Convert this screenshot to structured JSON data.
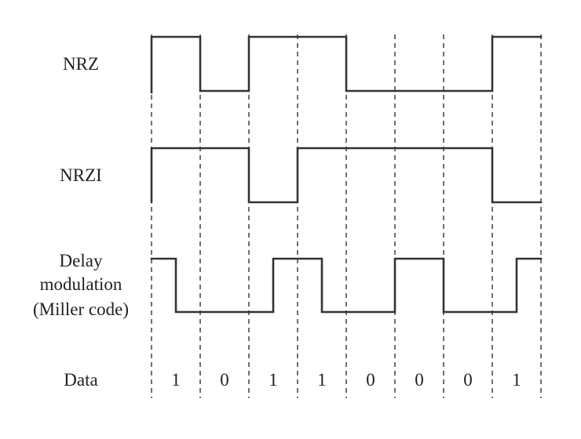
{
  "signals": [
    {
      "label_lines": [
        "NRZ"
      ],
      "levels": [
        1,
        0,
        1,
        1,
        0,
        0,
        0,
        1
      ]
    },
    {
      "label_lines": [
        "NRZI"
      ],
      "levels": [
        1,
        1,
        0,
        1,
        1,
        1,
        1,
        0
      ]
    },
    {
      "label_lines": [
        "Delay",
        "modulation",
        "(Miller code)"
      ],
      "half_levels": [
        1,
        0,
        0,
        0,
        0,
        1,
        1,
        0,
        0,
        0,
        1,
        1,
        0,
        0,
        0,
        1
      ]
    }
  ],
  "data_row": {
    "label": "Data",
    "bits": [
      "1",
      "0",
      "1",
      "1",
      "0",
      "0",
      "0",
      "1"
    ]
  },
  "colors": {
    "line": "#333333",
    "text": "#222222"
  }
}
